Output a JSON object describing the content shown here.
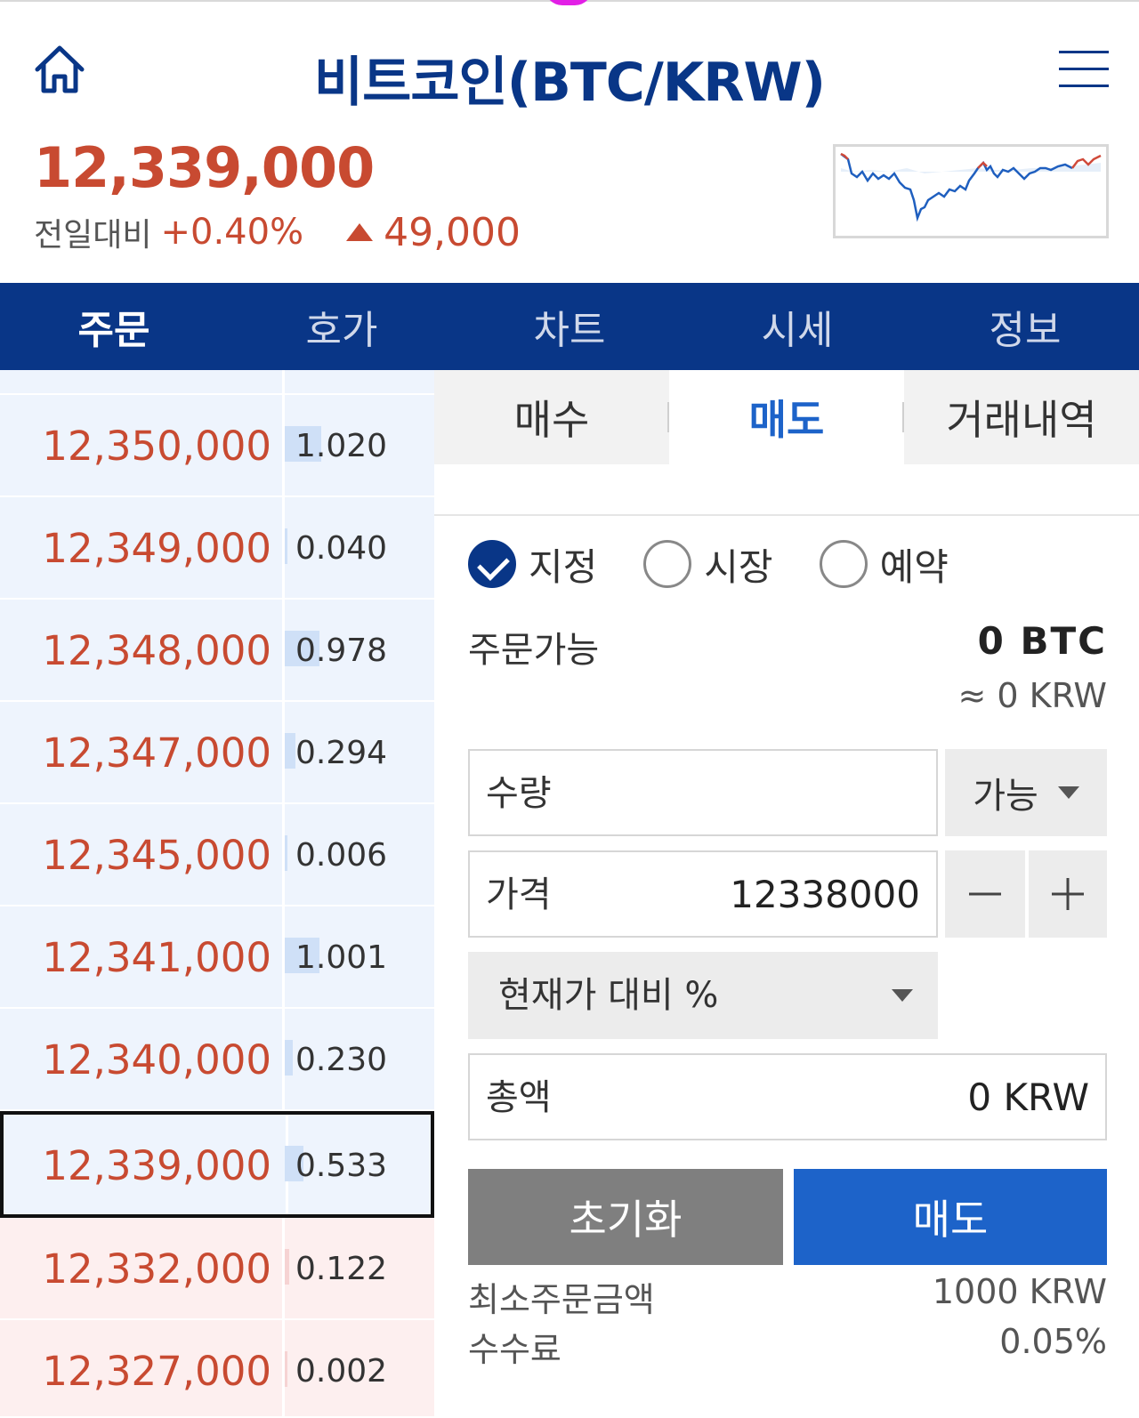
{
  "header": {
    "title": "비트코인(BTC/KRW)",
    "price": "12,339,000",
    "change_label": "전일대비",
    "change_percent": "+0.40%",
    "change_amount": "49,000",
    "colors": {
      "brand": "#093687",
      "up": "#c84a31",
      "sell": "#1d63c9"
    }
  },
  "nav": {
    "tabs": [
      {
        "label": "주문",
        "active": true
      },
      {
        "label": "호가",
        "active": false
      },
      {
        "label": "차트",
        "active": false
      },
      {
        "label": "시세",
        "active": false
      },
      {
        "label": "정보",
        "active": false
      }
    ]
  },
  "orderbook": {
    "rows": [
      {
        "price": "12,350,000",
        "qty": "1.020",
        "side": "ask",
        "fill": 0.27
      },
      {
        "price": "12,349,000",
        "qty": "0.040",
        "side": "ask",
        "fill": 0.02
      },
      {
        "price": "12,348,000",
        "qty": "0.978",
        "side": "ask",
        "fill": 0.26
      },
      {
        "price": "12,347,000",
        "qty": "0.294",
        "side": "ask",
        "fill": 0.08
      },
      {
        "price": "12,345,000",
        "qty": "0.006",
        "side": "ask",
        "fill": 0.0
      },
      {
        "price": "12,341,000",
        "qty": "1.001",
        "side": "ask",
        "fill": 0.26
      },
      {
        "price": "12,340,000",
        "qty": "0.230",
        "side": "ask",
        "fill": 0.06
      },
      {
        "price": "12,339,000",
        "qty": "0.533",
        "side": "ask",
        "fill": 0.14,
        "current": true
      },
      {
        "price": "12,332,000",
        "qty": "0.122",
        "side": "bid",
        "fill": 0.03
      },
      {
        "price": "12,327,000",
        "qty": "0.002",
        "side": "bid",
        "fill": 0.0
      }
    ]
  },
  "panel": {
    "subtabs": [
      {
        "label": "매수",
        "active": false
      },
      {
        "label": "매도",
        "active": true
      },
      {
        "label": "거래내역",
        "active": false
      }
    ],
    "order_types": [
      {
        "label": "지정",
        "checked": true
      },
      {
        "label": "시장",
        "checked": false
      },
      {
        "label": "예약",
        "checked": false
      }
    ],
    "available_label": "주문가능",
    "available_btc": "0 BTC",
    "available_krw": "≈ 0 KRW",
    "quantity_label": "수량",
    "quantity_value": "",
    "avail_dropdown": "가능",
    "price_label": "가격",
    "price_value": "12338000",
    "minus_symbol": "−",
    "plus_symbol": "+",
    "percent_dropdown": "현재가 대비 %",
    "total_label": "총액",
    "total_value": "0 KRW",
    "reset_label": "초기화",
    "sell_label": "매도",
    "min_order_label": "최소주문금액",
    "min_order_value": "1000 KRW",
    "fee_label": "수수료",
    "fee_value": "0.05%"
  },
  "icons": [
    "home-icon",
    "menu-icon",
    "check-icon",
    "caret-down-icon",
    "minus-icon",
    "plus-icon"
  ]
}
